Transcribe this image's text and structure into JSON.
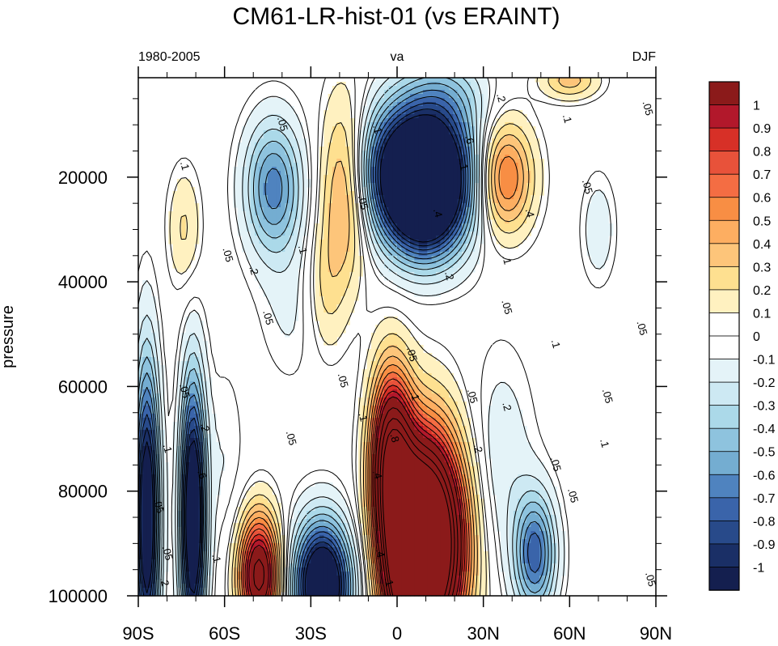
{
  "chart_data": {
    "type": "heatmap",
    "title": "CM61-LR-hist-01  (vs ERAINT)",
    "left_string": "1980-2005",
    "center_string": "va",
    "right_string": "DJF",
    "ylabel": "pressure",
    "x_ticks": [
      {
        "value": -90,
        "label": "90S"
      },
      {
        "value": -60,
        "label": "60S"
      },
      {
        "value": -30,
        "label": "30S"
      },
      {
        "value": 0,
        "label": "0"
      },
      {
        "value": 30,
        "label": "30N"
      },
      {
        "value": 60,
        "label": "60N"
      },
      {
        "value": 90,
        "label": "90N"
      }
    ],
    "y_ticks": [
      {
        "value": 20000,
        "label": "20000"
      },
      {
        "value": 40000,
        "label": "40000"
      },
      {
        "value": 60000,
        "label": "60000"
      },
      {
        "value": 80000,
        "label": "80000"
      },
      {
        "value": 100000,
        "label": "100000"
      }
    ],
    "xlim": [
      -90,
      90
    ],
    "ylim": [
      1000,
      100000
    ],
    "y_inverted": true,
    "colorbar": {
      "labels": [
        "1",
        "0.9",
        "0.8",
        "0.7",
        "0.6",
        "0.5",
        "0.4",
        "0.3",
        "0.2",
        "0.1",
        "0",
        "-0.1",
        "-0.2",
        "-0.3",
        "-0.4",
        "-0.5",
        "-0.6",
        "-0.7",
        "-0.8",
        "-0.9",
        "-1"
      ],
      "colors": [
        "#8b1a1a",
        "#b2182b",
        "#d73027",
        "#e8523a",
        "#f46d43",
        "#f88e44",
        "#fdae61",
        "#fdc57a",
        "#fee090",
        "#fff1c0",
        "#ffffff",
        "#ffffff",
        "#e4f3f8",
        "#cde9f3",
        "#abd9e9",
        "#8ec3de",
        "#74add1",
        "#4f83bf",
        "#3a64aa",
        "#284a8a",
        "#1a2f66",
        "#141f4f"
      ]
    },
    "features": [
      {
        "lat": 8,
        "p": 19000,
        "sx": 13,
        "sy": 9000,
        "amp": -1.8
      },
      {
        "lat": 10,
        "p": 28000,
        "sx": 9,
        "sy": 7000,
        "amp": -0.5
      },
      {
        "lat": -43,
        "p": 22000,
        "sx": 7,
        "sy": 9000,
        "amp": -0.65
      },
      {
        "lat": -18,
        "p": 22000,
        "sx": 6,
        "sy": 12000,
        "amp": 0.55
      },
      {
        "lat": 37,
        "p": 20000,
        "sx": 7,
        "sy": 7500,
        "amp": 0.72
      },
      {
        "lat": -74,
        "p": 30000,
        "sx": 4,
        "sy": 8000,
        "amp": 0.22
      },
      {
        "lat": 70,
        "p": 30000,
        "sx": 4,
        "sy": 7000,
        "amp": -0.18
      },
      {
        "lat": -36,
        "p": 45000,
        "sx": 8,
        "sy": 10000,
        "amp": -0.12
      },
      {
        "lat": -25,
        "p": 42000,
        "sx": 5,
        "sy": 9000,
        "amp": 0.22
      },
      {
        "lat": 10,
        "p": 90000,
        "sx": 9,
        "sy": 14000,
        "amp": 2.6
      },
      {
        "lat": -2,
        "p": 74000,
        "sx": 5,
        "sy": 12000,
        "amp": 1.4
      },
      {
        "lat": 4,
        "p": 95000,
        "sx": 5,
        "sy": 10000,
        "amp": 1.2
      },
      {
        "lat": -26,
        "p": 98000,
        "sx": 7,
        "sy": 8500,
        "amp": -1.45
      },
      {
        "lat": -48,
        "p": 96000,
        "sx": 5,
        "sy": 8000,
        "amp": 1.3
      },
      {
        "lat": -71,
        "p": 85000,
        "sx": 3,
        "sy": 18000,
        "amp": -1.4
      },
      {
        "lat": -87,
        "p": 85000,
        "sx": 3,
        "sy": 20000,
        "amp": -1.3
      },
      {
        "lat": 48,
        "p": 92000,
        "sx": 5,
        "sy": 8000,
        "amp": -0.75
      },
      {
        "lat": 36,
        "p": 75000,
        "sx": 8,
        "sy": 15000,
        "amp": -0.18
      },
      {
        "lat": 17,
        "p": 4000,
        "sx": 10,
        "sy": 5000,
        "amp": -0.25
      },
      {
        "lat": 60,
        "p": 1500,
        "sx": 7,
        "sy": 2500,
        "amp": 0.35
      },
      {
        "lat": -60,
        "p": 75000,
        "sx": 5,
        "sy": 14000,
        "amp": -0.1
      }
    ],
    "contour_labels": [
      {
        "text": ".05",
        "lat": -41,
        "p": 10000
      },
      {
        "text": ".1",
        "lat": -75,
        "p": 18000
      },
      {
        "text": ".05",
        "lat": -60,
        "p": 35000
      },
      {
        "text": ".1",
        "lat": -34,
        "p": 34000
      },
      {
        "text": ".2",
        "lat": -51,
        "p": 38000
      },
      {
        "text": ".05",
        "lat": -46,
        "p": 47000
      },
      {
        "text": ".05",
        "lat": -13,
        "p": 25000
      },
      {
        "text": ".1",
        "lat": -8,
        "p": 11000
      },
      {
        "text": ".2",
        "lat": 35,
        "p": 5000
      },
      {
        "text": ".6",
        "lat": 24,
        "p": 13000
      },
      {
        "text": ".1",
        "lat": 22,
        "p": 18000
      },
      {
        "text": ".4",
        "lat": 13,
        "p": 27000
      },
      {
        "text": ".2",
        "lat": 17,
        "p": 39000
      },
      {
        "text": ".1",
        "lat": 58,
        "p": 9000
      },
      {
        "text": ".05",
        "lat": 65,
        "p": 22000
      },
      {
        "text": ".4",
        "lat": 45,
        "p": 27000
      },
      {
        "text": ".1",
        "lat": 37,
        "p": 36000
      },
      {
        "text": ".05",
        "lat": 37,
        "p": 45000
      },
      {
        "text": ".1",
        "lat": 54,
        "p": 52000
      },
      {
        "text": ".05",
        "lat": 86,
        "p": 7000
      },
      {
        "text": ".05",
        "lat": 84,
        "p": 49000
      },
      {
        "text": ".05",
        "lat": 4,
        "p": 54000
      },
      {
        "text": ".1",
        "lat": 5,
        "p": 62000
      },
      {
        "text": ".05",
        "lat": 25,
        "p": 62000
      },
      {
        "text": ".2",
        "lat": 37,
        "p": 64000
      },
      {
        "text": ".05",
        "lat": -20,
        "p": 59000
      },
      {
        "text": ".05",
        "lat": -38,
        "p": 70000
      },
      {
        "text": ".1",
        "lat": -13,
        "p": 66000
      },
      {
        "text": ".8",
        "lat": -2,
        "p": 70000
      },
      {
        "text": ".4",
        "lat": -8,
        "p": 77000
      },
      {
        "text": ".2",
        "lat": 27,
        "p": 72000
      },
      {
        "text": ".05",
        "lat": 54,
        "p": 75000
      },
      {
        "text": ".05",
        "lat": 60,
        "p": 81000
      },
      {
        "text": ".1",
        "lat": 71,
        "p": 71000
      },
      {
        "text": ".05",
        "lat": 72,
        "p": 62000
      },
      {
        "text": ".05",
        "lat": -75,
        "p": 61000
      },
      {
        "text": ".2",
        "lat": -68,
        "p": 68000
      },
      {
        "text": ".6",
        "lat": -69,
        "p": 77000
      },
      {
        "text": ".1",
        "lat": -81,
        "p": 72000
      },
      {
        "text": ".05",
        "lat": -84,
        "p": 83000
      },
      {
        "text": ".05",
        "lat": -81,
        "p": 92000
      },
      {
        "text": ".1",
        "lat": -64,
        "p": 93000
      },
      {
        "text": ".4",
        "lat": -7,
        "p": 92000
      },
      {
        "text": ".1",
        "lat": -4,
        "p": 97500
      },
      {
        "text": ".2",
        "lat": -82,
        "p": 97500
      },
      {
        "text": ".05",
        "lat": 87,
        "p": 97000
      }
    ]
  }
}
